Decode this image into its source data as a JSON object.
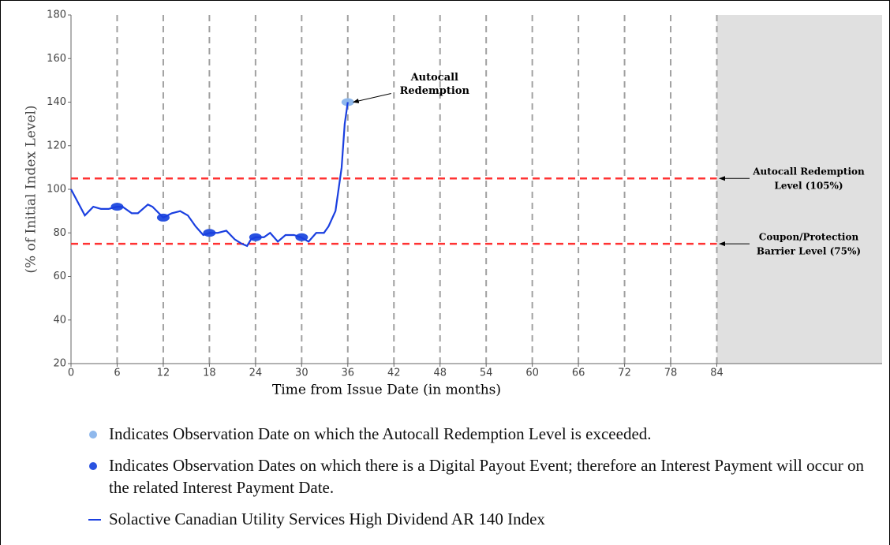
{
  "chart_data": {
    "type": "line",
    "xlabel": "Time from Issue Date (in months)",
    "ylabel": "(% of Initial Index Level)",
    "xlim": [
      0,
      105.5
    ],
    "ylim": [
      20,
      180
    ],
    "xticks": [
      0,
      6,
      12,
      18,
      24,
      30,
      36,
      42,
      48,
      54,
      60,
      66,
      72,
      78,
      84
    ],
    "yticks": [
      20,
      40,
      60,
      80,
      100,
      120,
      140,
      160,
      180
    ],
    "grid": true,
    "shaded_from": 84,
    "shade_color": "#e0e0e0",
    "series": [
      {
        "name": "Solactive Canadian Utility Services High Dividend AR 140 Index",
        "color": "#1a3fe0",
        "x": [
          0,
          1.8,
          2.9,
          3.9,
          4.9,
          6,
          6.7,
          7.9,
          8.7,
          10,
          10.6,
          12,
          13.1,
          14.2,
          15.2,
          16.2,
          17.2,
          18.1,
          19.1,
          20.2,
          21.3,
          22.2,
          22.9,
          23.4,
          24,
          25.1,
          25.9,
          26.9,
          27.9,
          29,
          29.9,
          30.9,
          31.9,
          32.9,
          33.5,
          34.4,
          35.2,
          35.6,
          36
        ],
        "values": [
          100,
          88,
          92,
          91,
          91,
          92,
          92,
          89,
          89,
          93,
          92,
          87,
          89,
          90,
          88,
          83,
          79,
          80,
          80,
          81,
          77,
          75,
          74,
          77,
          78,
          78,
          80,
          76,
          79,
          79,
          78,
          76,
          80,
          80,
          83,
          90,
          110,
          130,
          140
        ]
      },
      {
        "name": "Indicates Observation Date on which the Autocall Redemption Level is exceeded.",
        "color": "#8fb8ec",
        "marker": true,
        "x": [
          36
        ],
        "values": [
          140
        ]
      },
      {
        "name": "Indicates Observation Dates on which there is a Digital Payout Event; therefore an Interest Payment will occur on the related Interest Payment Date.",
        "color": "#2952e0",
        "marker": true,
        "x": [
          6,
          12,
          18,
          24,
          30
        ],
        "values": [
          92,
          87,
          80,
          78,
          78
        ]
      }
    ],
    "hlines": [
      {
        "value": 105,
        "color": "#ff3333",
        "label": [
          "Autocall Redemption",
          "Level (105%)"
        ]
      },
      {
        "value": 75,
        "color": "#ff3333",
        "label": [
          "Coupon/Protection",
          "Barrier Level (75%)"
        ]
      }
    ],
    "annotations": [
      {
        "x": 36,
        "y": 140,
        "text": [
          "Autocall",
          "Redemption"
        ]
      }
    ]
  }
}
